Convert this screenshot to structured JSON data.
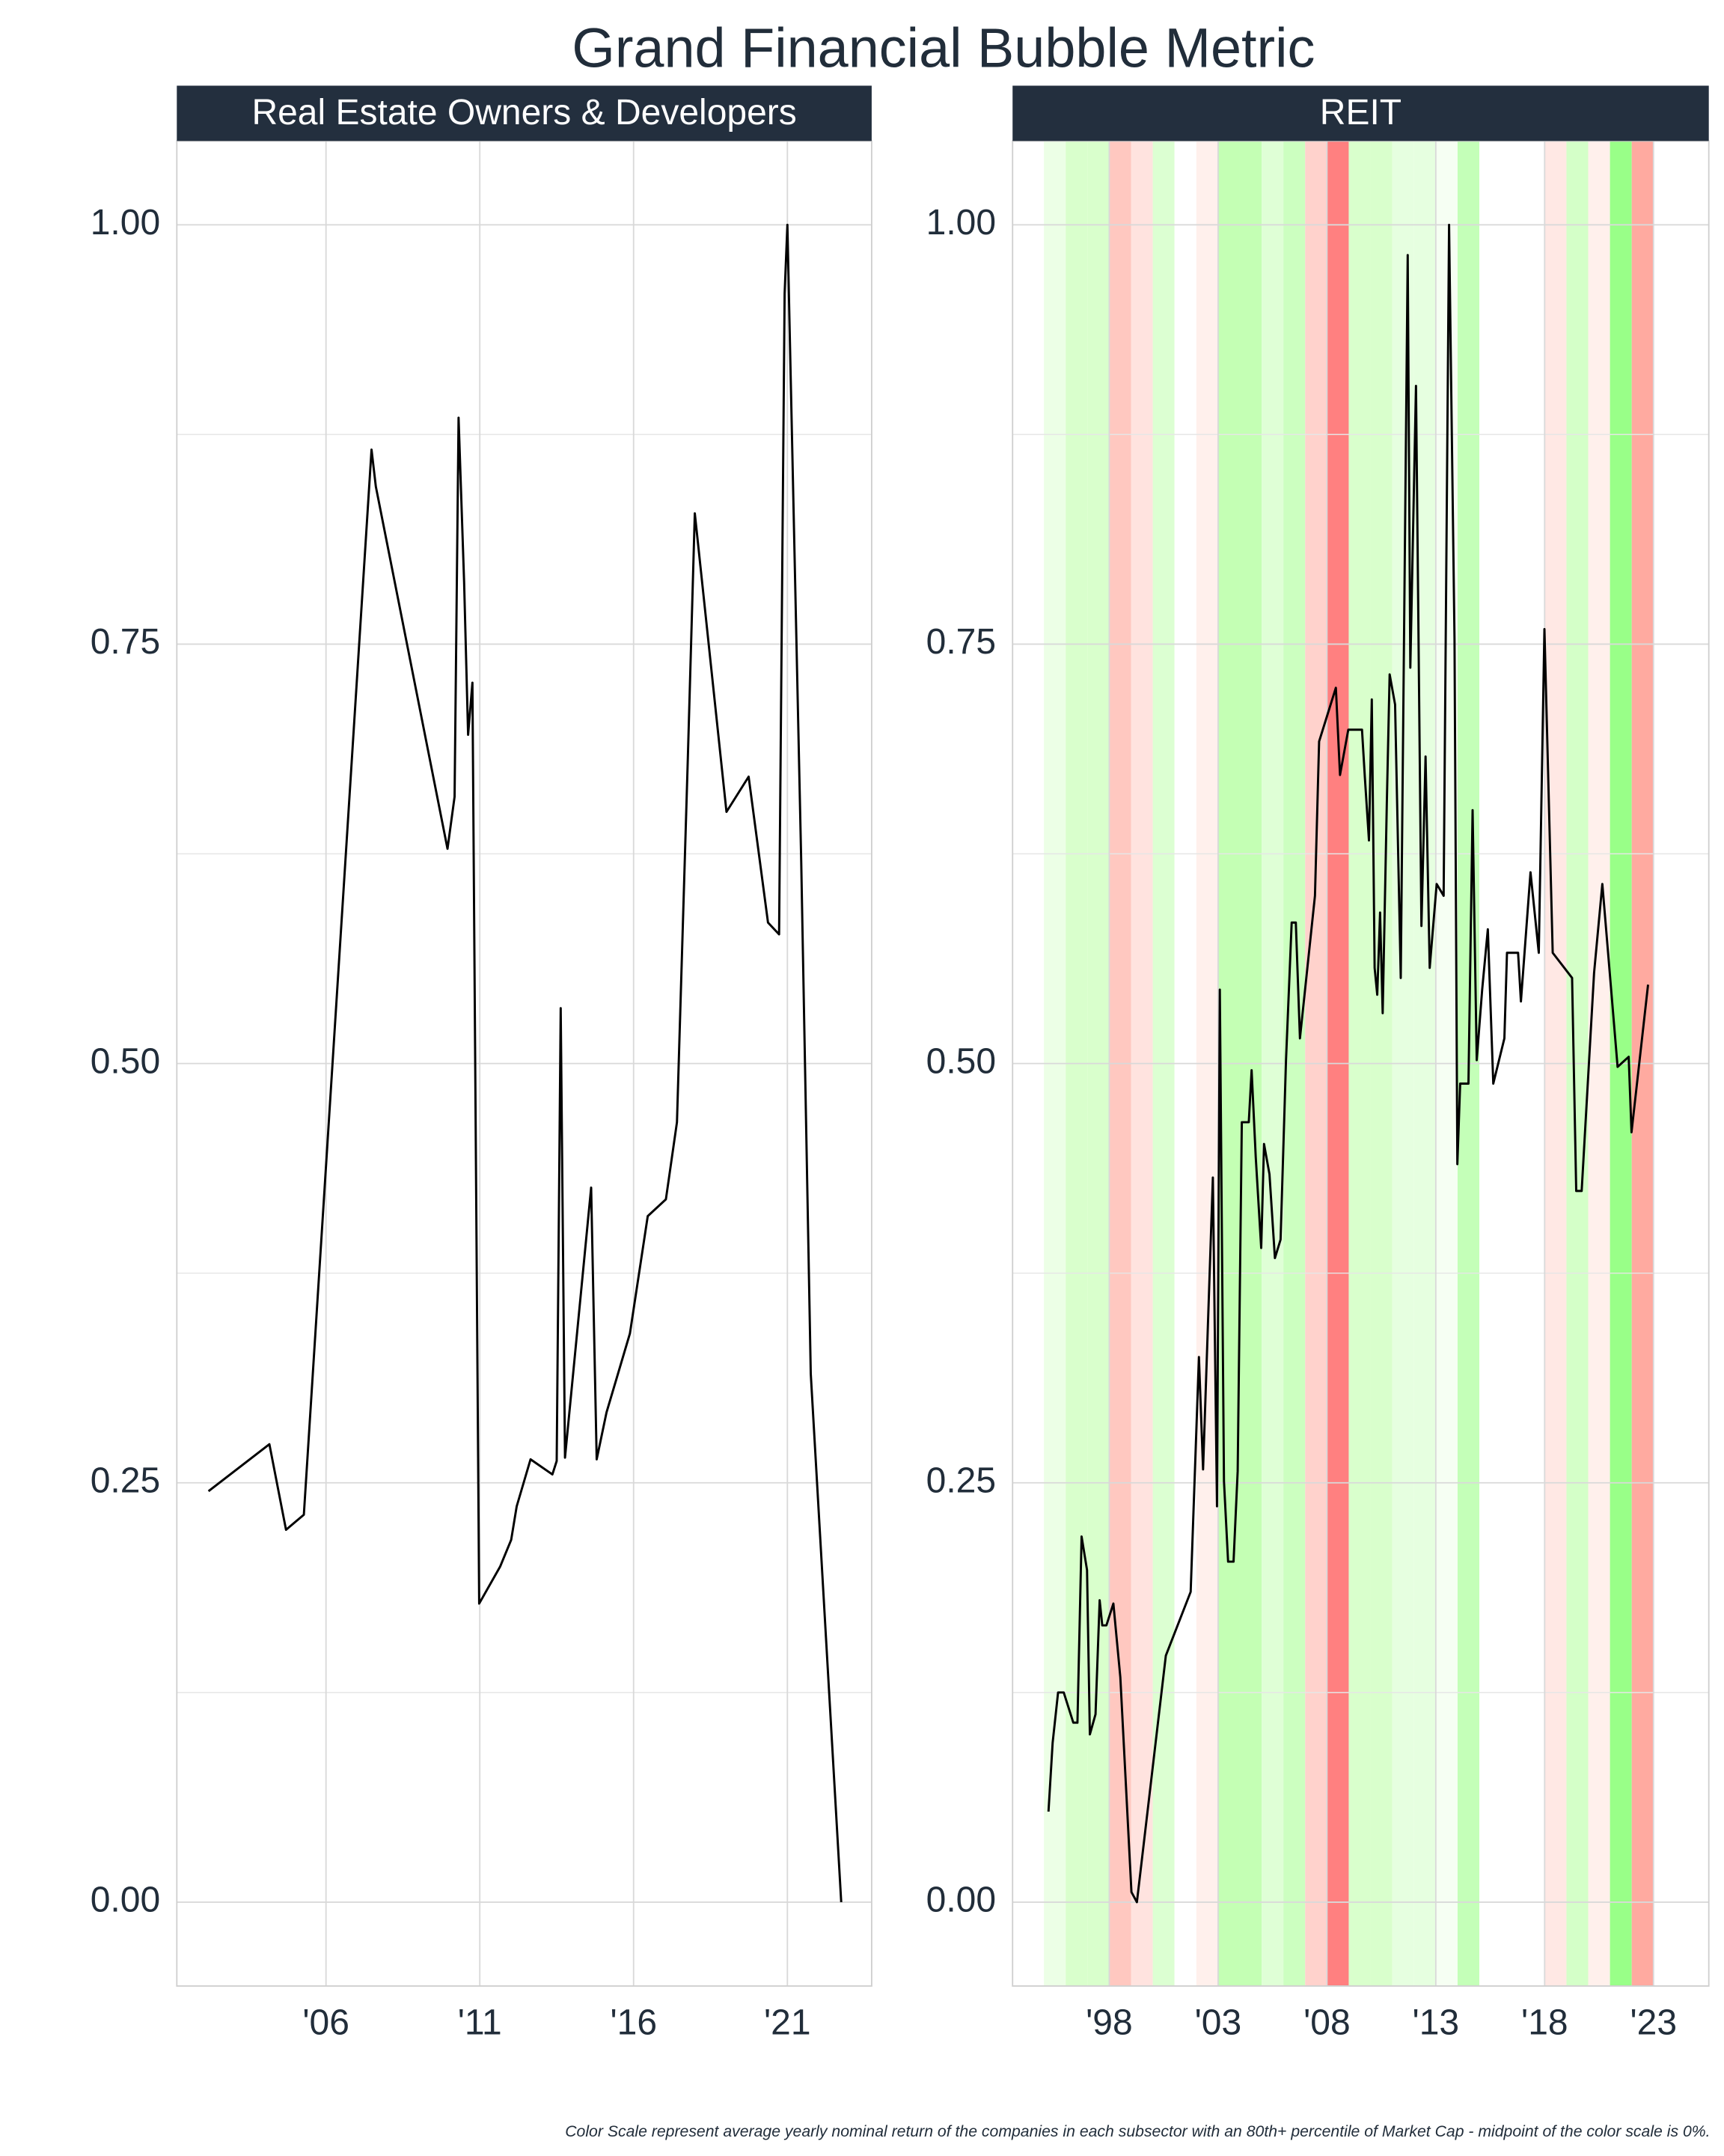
{
  "title": "Grand Financial Bubble Metric",
  "caption": "Color Scale represent average yearly nominal return of the companies in each subsector with an 80th+ percentile of Market Cap - midpoint of the color scale is 0%.",
  "chart_data": [
    {
      "type": "line",
      "title": "Real Estate Owners & Developers",
      "color": "#000000",
      "x": [
        2002.18,
        2004.16,
        2004.7,
        2005.28,
        2007.48,
        2007.62,
        2009.95,
        2010.18,
        2010.31,
        2010.49,
        2010.62,
        2010.76,
        2010.98,
        2011.66,
        2012.02,
        2012.2,
        2012.65,
        2013.36,
        2013.5,
        2013.63,
        2013.77,
        2014.62,
        2014.8,
        2015.12,
        2015.88,
        2016.46,
        2017.05,
        2017.41,
        2017.76,
        2017.99,
        2019.02,
        2019.74,
        2020.37,
        2020.73,
        2020.91,
        2021.0,
        2021.45,
        2021.76,
        2022.75
      ],
      "values": [
        0.245,
        0.273,
        0.222,
        0.231,
        0.866,
        0.844,
        0.628,
        0.659,
        0.885,
        0.787,
        0.696,
        0.727,
        0.178,
        0.2,
        0.216,
        0.236,
        0.264,
        0.255,
        0.263,
        0.533,
        0.265,
        0.426,
        0.264,
        0.292,
        0.339,
        0.409,
        0.419,
        0.465,
        0.68,
        0.828,
        0.65,
        0.671,
        0.584,
        0.577,
        0.959,
        1.0,
        0.62,
        0.315,
        0.0
      ],
      "xlim": [
        2001.15,
        2023.74
      ],
      "xticks": [
        {
          "value": 2006,
          "label": "'06"
        },
        {
          "value": 2011,
          "label": "'11"
        },
        {
          "value": 2016,
          "label": "'16"
        },
        {
          "value": 2021,
          "label": "'21"
        }
      ],
      "ylim": [
        -0.05,
        1.05
      ],
      "yticks": [
        {
          "value": 0,
          "label": "0.00"
        },
        {
          "value": 0.25,
          "label": "0.25"
        },
        {
          "value": 0.5,
          "label": "0.50"
        },
        {
          "value": 0.75,
          "label": "0.75"
        },
        {
          "value": 1,
          "label": "1.00"
        }
      ],
      "yminor": [
        0.125,
        0.375,
        0.625,
        0.875
      ],
      "grid": true
    },
    {
      "type": "line",
      "title": "REIT",
      "color": "#000000",
      "x": [
        1995.21,
        1995.4,
        1995.65,
        1995.91,
        1996.35,
        1996.54,
        1996.73,
        1996.98,
        1997.11,
        1997.37,
        1997.56,
        1997.68,
        1997.87,
        1998.19,
        1998.51,
        1999.02,
        1999.27,
        2000.6,
        2001.74,
        2002.12,
        2002.31,
        2002.76,
        2002.95,
        2003.08,
        2003.27,
        2003.46,
        2003.71,
        2003.9,
        2004.09,
        2004.41,
        2004.54,
        2004.73,
        2004.98,
        2005.11,
        2005.36,
        2005.61,
        2005.87,
        2006.12,
        2006.38,
        2006.57,
        2006.76,
        2007.45,
        2007.64,
        2008.41,
        2008.6,
        2008.98,
        2009.61,
        2009.74,
        2009.93,
        2010.06,
        2010.19,
        2010.31,
        2010.44,
        2010.56,
        2010.75,
        2010.88,
        2011.13,
        2011.39,
        2011.71,
        2011.83,
        2012.09,
        2012.34,
        2012.53,
        2012.72,
        2013.04,
        2013.36,
        2013.61,
        2013.86,
        2013.99,
        2014.12,
        2014.5,
        2014.69,
        2014.88,
        2015.13,
        2015.39,
        2015.64,
        2016.15,
        2016.27,
        2016.78,
        2016.91,
        2017.35,
        2017.73,
        2017.99,
        2018.37,
        2019.26,
        2019.45,
        2019.7,
        2020.27,
        2020.65,
        2021.35,
        2021.86,
        2021.99,
        2022.75
      ],
      "values": [
        0.054,
        0.095,
        0.125,
        0.125,
        0.107,
        0.107,
        0.218,
        0.198,
        0.1,
        0.112,
        0.18,
        0.165,
        0.165,
        0.178,
        0.134,
        0.006,
        0.0,
        0.147,
        0.185,
        0.325,
        0.258,
        0.432,
        0.236,
        0.544,
        0.251,
        0.203,
        0.203,
        0.257,
        0.465,
        0.465,
        0.496,
        0.444,
        0.39,
        0.452,
        0.434,
        0.384,
        0.395,
        0.502,
        0.584,
        0.584,
        0.515,
        0.6,
        0.692,
        0.724,
        0.672,
        0.699,
        0.699,
        0.671,
        0.633,
        0.717,
        0.557,
        0.541,
        0.59,
        0.53,
        0.655,
        0.732,
        0.714,
        0.551,
        0.982,
        0.736,
        0.904,
        0.582,
        0.683,
        0.557,
        0.607,
        0.6,
        1.0,
        0.753,
        0.44,
        0.488,
        0.488,
        0.651,
        0.502,
        0.544,
        0.58,
        0.488,
        0.515,
        0.566,
        0.566,
        0.537,
        0.614,
        0.566,
        0.759,
        0.566,
        0.551,
        0.424,
        0.424,
        0.554,
        0.607,
        0.498,
        0.504,
        0.459,
        0.547
      ],
      "bands": {
        "x": [
          1995,
          1996,
          1997,
          1998,
          1999,
          2000,
          2001,
          2002,
          2003,
          2004,
          2005,
          2006,
          2007,
          2008,
          2009,
          2010,
          2011,
          2012,
          2013,
          2014,
          2015,
          2016,
          2017,
          2018,
          2019,
          2020,
          2021,
          2022
        ],
        "colors": [
          "#ecffe6",
          "#d9ffcc",
          "#d9ffcc",
          "#ffc8c0",
          "#ffe3df",
          "#dcffd2",
          "#ffffff",
          "#fff0ec",
          "#c4ffb4",
          "#c4ffb4",
          "#dfffd6",
          "#ccffc0",
          "#ffd2cc",
          "#ff8080",
          "#d9ffcc",
          "#d9ffcc",
          "#e6ffe0",
          "#e6ffe0",
          "#f6fff3",
          "#c4ffb8",
          "#ffffff",
          "#ffffff",
          "#ffffff",
          "#ffe8e4",
          "#d4ffc8",
          "#fff0ec",
          "#99ff88",
          "#ffaaa0"
        ]
      },
      "xlim": [
        1993.56,
        2025.54
      ],
      "xticks": [
        {
          "value": 1998,
          "label": "'98"
        },
        {
          "value": 2003,
          "label": "'03"
        },
        {
          "value": 2008,
          "label": "'08"
        },
        {
          "value": 2013,
          "label": "'13"
        },
        {
          "value": 2018,
          "label": "'18"
        },
        {
          "value": 2023,
          "label": "'23"
        }
      ],
      "ylim": [
        -0.05,
        1.05
      ],
      "yticks": [
        {
          "value": 0,
          "label": "0.00"
        },
        {
          "value": 0.25,
          "label": "0.25"
        },
        {
          "value": 0.5,
          "label": "0.50"
        },
        {
          "value": 0.75,
          "label": "0.75"
        },
        {
          "value": 1,
          "label": "1.00"
        }
      ],
      "yminor": [
        0.125,
        0.375,
        0.625,
        0.875
      ],
      "grid": true
    }
  ]
}
